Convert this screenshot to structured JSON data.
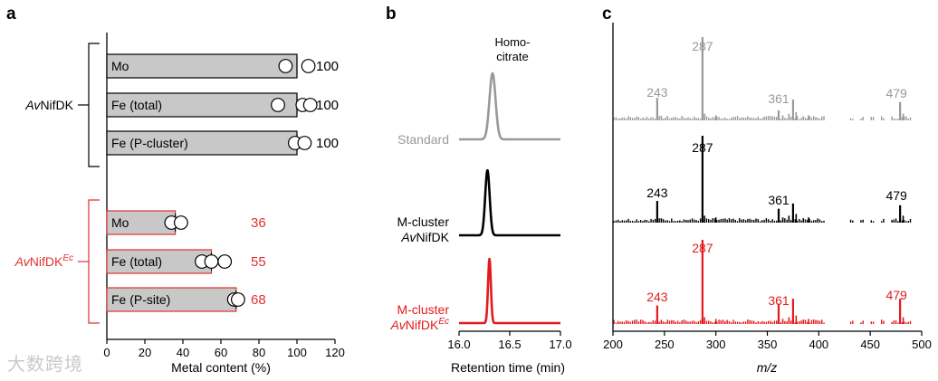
{
  "panels": {
    "a": "a",
    "b": "b",
    "c": "c"
  },
  "chart_data": [
    {
      "panel": "a",
      "type": "bar",
      "orientation": "horizontal",
      "xlabel": "Metal content (%)",
      "xlim": [
        0,
        120
      ],
      "xticks": [
        0,
        20,
        40,
        60,
        80,
        100,
        120
      ],
      "groups": [
        {
          "label_parts": [
            "Av",
            "NifDK",
            ""
          ],
          "color": "#000000",
          "bars": [
            {
              "category": "Mo",
              "value": 100,
              "value_label": "100",
              "points": [
                94,
                106
              ]
            },
            {
              "category": "Fe (total)",
              "value": 100,
              "value_label": "100",
              "points": [
                90,
                103,
                107
              ]
            },
            {
              "category": "Fe (P-cluster)",
              "value": 100,
              "value_label": "100",
              "points": [
                99,
                104
              ]
            }
          ]
        },
        {
          "label_parts": [
            "Av",
            "NifDK",
            "Ec"
          ],
          "color": "#e03131",
          "bars": [
            {
              "category": "Mo",
              "value": 36,
              "value_label": "36",
              "points": [
                34,
                39
              ]
            },
            {
              "category": "Fe (total)",
              "value": 55,
              "value_label": "55",
              "points": [
                50,
                55,
                62
              ]
            },
            {
              "category": "Fe (P-site)",
              "value": 68,
              "value_label": "68",
              "points": [
                67,
                69
              ]
            }
          ]
        }
      ]
    },
    {
      "panel": "b",
      "type": "line",
      "xlabel": "Retention time (min)",
      "xlim": [
        16.0,
        17.0
      ],
      "xticks": [
        "16.0",
        "16.5",
        "17.0"
      ],
      "peak_annotation": [
        "Homo-",
        "citrate"
      ],
      "series": [
        {
          "name_lines": [
            [
              "Standard",
              ""
            ]
          ],
          "color": "#999999",
          "peak_center": 16.33,
          "peak_width": 0.03
        },
        {
          "name_lines": [
            [
              "M-cluster",
              ""
            ],
            [
              "Av",
              "NifDK"
            ]
          ],
          "color": "#000000",
          "peak_center": 16.28,
          "peak_width": 0.022
        },
        {
          "name_lines": [
            [
              "M-cluster",
              ""
            ],
            [
              "Av",
              "NifDK"
            ]
          ],
          "name_superscript": "Ec",
          "color": "#e31a1c",
          "peak_center": 16.3,
          "peak_width": 0.014
        }
      ]
    },
    {
      "panel": "c",
      "type": "bar",
      "subtype": "mass-spectrum",
      "xlabel": "m/z",
      "xlim": [
        200,
        500
      ],
      "xticks": [
        200,
        250,
        300,
        350,
        400,
        450,
        500
      ],
      "labeled_peaks": [
        "243",
        "287",
        "361",
        "479"
      ],
      "spectra": [
        {
          "name": "Standard",
          "color": "#999999",
          "peaks": [
            [
              243,
              0.27
            ],
            [
              287,
              1.0
            ],
            [
              361,
              0.12
            ],
            [
              375,
              0.25
            ],
            [
              479,
              0.22
            ]
          ]
        },
        {
          "name": "M-cluster AvNifDK",
          "color": "#000000",
          "peaks": [
            [
              243,
              0.25
            ],
            [
              287,
              1.0
            ],
            [
              361,
              0.16
            ],
            [
              375,
              0.22
            ],
            [
              479,
              0.2
            ]
          ]
        },
        {
          "name": "M-cluster AvNifDKEc",
          "color": "#e31a1c",
          "peaks": [
            [
              243,
              0.22
            ],
            [
              287,
              1.0
            ],
            [
              361,
              0.24
            ],
            [
              375,
              0.3
            ],
            [
              479,
              0.3
            ]
          ]
        }
      ]
    }
  ],
  "watermark": "大数跨境"
}
